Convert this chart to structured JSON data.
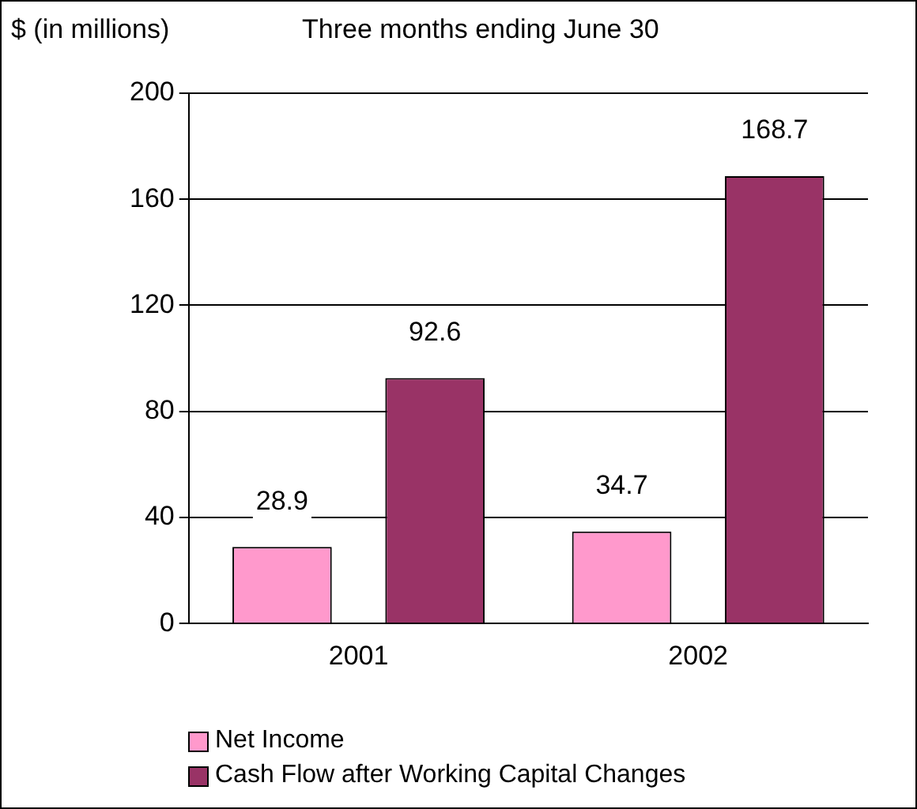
{
  "chart_data": {
    "type": "bar",
    "title": "Three months ending June 30",
    "ylabel": "$ (in millions)",
    "categories": [
      "2001",
      "2002"
    ],
    "series": [
      {
        "name": "Net Income",
        "color": "#ff99cc",
        "values": [
          28.9,
          34.7
        ]
      },
      {
        "name": "Cash Flow after Working Capital Changes",
        "color": "#993366",
        "values": [
          92.6,
          168.7
        ]
      }
    ],
    "ylim": [
      0,
      200
    ],
    "yticks": [
      0,
      40,
      80,
      120,
      160,
      200
    ],
    "grid": "y",
    "legend": "bottom left",
    "data_labels": true
  }
}
